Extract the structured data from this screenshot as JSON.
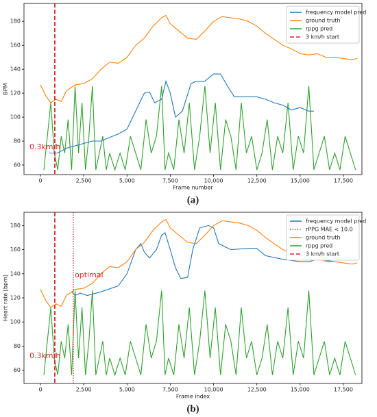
{
  "chart_data": [
    {
      "type": "line",
      "caption": "(a)",
      "y_label": "BPM",
      "x_label": "Frame number",
      "xlim": [
        -950,
        18570
      ],
      "ylim": [
        52,
        195
      ],
      "xticks": [
        0,
        {
          "value": 2500,
          "label": "2,500"
        },
        {
          "value": 5000,
          "label": "5,000"
        },
        {
          "value": 7500,
          "label": "7,500"
        },
        {
          "value": 10000,
          "label": "10,000"
        },
        {
          "value": 12500,
          "label": "12,500"
        },
        {
          "value": 15000,
          "label": "15,000"
        },
        {
          "value": 17500,
          "label": "17,500"
        }
      ],
      "yticks": [
        60,
        80,
        100,
        120,
        140,
        160,
        180
      ],
      "annotations": [
        "0.3km/h"
      ],
      "series": [
        {
          "name": "frequency model pred",
          "color": "#1f77b4",
          "style": "solid",
          "x": [
            500,
            1000,
            1500,
            2000,
            2500,
            3000,
            3500,
            4000,
            4500,
            5000,
            5500,
            6000,
            6300,
            6600,
            7000,
            7250,
            7500,
            7800,
            8200,
            8700,
            9000,
            9500,
            10000,
            10400,
            10800,
            11200,
            12000,
            12500,
            13000,
            13500,
            14000,
            14500,
            15000,
            15500,
            15800
          ],
          "values": [
            70,
            70,
            74,
            76,
            78,
            80,
            80,
            83,
            86,
            90,
            105,
            120,
            121,
            112,
            115,
            130,
            120,
            100,
            105,
            128,
            130,
            130,
            136,
            136,
            126,
            117,
            117,
            117,
            115,
            112,
            110,
            106,
            108,
            105,
            105
          ]
        },
        {
          "name": "ground truth",
          "color": "#ff7f0e",
          "style": "solid",
          "x": [
            0,
            300,
            600,
            900,
            1200,
            1500,
            2000,
            2500,
            3000,
            3500,
            4000,
            4500,
            5000,
            5500,
            6000,
            6500,
            7000,
            7250,
            7500,
            8000,
            8500,
            9000,
            9500,
            10000,
            10500,
            11000,
            11500,
            12000,
            12500,
            13000,
            13500,
            14000,
            14500,
            15000,
            15500,
            16000,
            16500,
            17000,
            17500,
            18000,
            18300
          ],
          "values": [
            127,
            118,
            112,
            115,
            113,
            122,
            127,
            128,
            132,
            140,
            146,
            145,
            150,
            160,
            166,
            176,
            183,
            185,
            178,
            172,
            166,
            165,
            172,
            180,
            184,
            183,
            182,
            180,
            176,
            170,
            165,
            160,
            157,
            153,
            152,
            153,
            150,
            150,
            149,
            148,
            149
          ]
        },
        {
          "name": "rppg pred",
          "color": "#2ca02c",
          "style": "solid",
          "x": [
            200,
            400,
            600,
            800,
            1000,
            1200,
            1400,
            1600,
            1800,
            2000,
            2200,
            2400,
            2600,
            2800,
            3000,
            3200,
            3400,
            3600,
            3800,
            4000,
            4300,
            4600,
            4900,
            5200,
            5500,
            5800,
            6100,
            6400,
            6700,
            7000,
            7200,
            7400,
            7700,
            8000,
            8300,
            8600,
            8900,
            9200,
            9500,
            9800,
            10100,
            10400,
            10700,
            11000,
            11300,
            11600,
            11900,
            12200,
            12500,
            12800,
            13100,
            13400,
            13700,
            14000,
            14300,
            14600,
            14900,
            15200,
            15500,
            15800,
            16100,
            16400,
            16700,
            17000,
            17300,
            17600,
            17900,
            18200
          ],
          "values": [
            56,
            84,
            112,
            70,
            56,
            84,
            70,
            98,
            56,
            126,
            70,
            112,
            56,
            84,
            126,
            56,
            70,
            84,
            56,
            70,
            56,
            70,
            56,
            84,
            70,
            56,
            98,
            70,
            84,
            126,
            56,
            70,
            56,
            98,
            70,
            112,
            56,
            84,
            126,
            70,
            112,
            56,
            98,
            84,
            56,
            112,
            70,
            84,
            56,
            70,
            98,
            56,
            84,
            70,
            112,
            56,
            84,
            70,
            126,
            56,
            70,
            84,
            56,
            70,
            56,
            84,
            70,
            56
          ]
        },
        {
          "name": "3 km/h start",
          "color": "#d62728",
          "style": "dashed",
          "x": [
            830
          ]
        }
      ]
    },
    {
      "type": "line",
      "caption": "(b)",
      "y_label": "Heart rate [bpm]",
      "x_label": "Frame index",
      "xlim": [
        -950,
        18570
      ],
      "ylim": [
        49,
        191
      ],
      "xticks": [
        0,
        {
          "value": 2500,
          "label": "2,500"
        },
        {
          "value": 5000,
          "label": "5,000"
        },
        {
          "value": 7500,
          "label": "7,500"
        },
        {
          "value": 10000,
          "label": "10,000"
        },
        {
          "value": 12500,
          "label": "12,500"
        },
        {
          "value": 15000,
          "label": "15,000"
        },
        {
          "value": 17500,
          "label": "17,500"
        }
      ],
      "yticks": [
        60,
        80,
        100,
        120,
        140,
        160,
        180
      ],
      "annotations": [
        "0.3km/h",
        "optimal"
      ],
      "series": [
        {
          "name": "frequency model pred",
          "color": "#1f77b4",
          "style": "solid",
          "x": [
            1800,
            2000,
            2300,
            2700,
            3500,
            4500,
            5000,
            5500,
            5800,
            6000,
            6300,
            6700,
            7000,
            7200,
            7500,
            7800,
            8100,
            8500,
            8800,
            9200,
            9700,
            10000,
            10300,
            11000,
            12000,
            12500,
            13000,
            14000,
            15000,
            15500,
            16000,
            17000
          ],
          "values": [
            125,
            122,
            124,
            122,
            125,
            130,
            140,
            160,
            165,
            158,
            153,
            160,
            172,
            174,
            160,
            145,
            136,
            137,
            160,
            178,
            180,
            178,
            165,
            160,
            161,
            161,
            155,
            152,
            150,
            150,
            152,
            150
          ]
        },
        {
          "name": "rPPG MAE < 10.0",
          "color": "#d62728",
          "style": "dotted",
          "x": [
            1900
          ]
        },
        {
          "name": "ground truth",
          "color": "#ff7f0e",
          "style": "solid",
          "x": [
            0,
            300,
            600,
            900,
            1200,
            1500,
            2000,
            2500,
            3000,
            3500,
            4000,
            4500,
            5000,
            5500,
            6000,
            6500,
            7000,
            7250,
            7500,
            8000,
            8500,
            9000,
            9500,
            10000,
            10500,
            11000,
            11500,
            12000,
            12500,
            13000,
            13500,
            14000,
            14500,
            15000,
            15500,
            16000,
            16500,
            17000,
            17500,
            18000,
            18300
          ],
          "values": [
            127,
            118,
            112,
            115,
            113,
            122,
            127,
            128,
            132,
            140,
            146,
            145,
            150,
            160,
            166,
            176,
            183,
            185,
            178,
            172,
            166,
            165,
            172,
            180,
            184,
            183,
            182,
            180,
            176,
            170,
            165,
            160,
            157,
            153,
            152,
            153,
            150,
            150,
            149,
            148,
            149
          ]
        },
        {
          "name": "rppg pred",
          "color": "#2ca02c",
          "style": "solid",
          "x": [
            200,
            400,
            600,
            800,
            1000,
            1200,
            1400,
            1600,
            1800,
            2000,
            2200,
            2400,
            2600,
            2800,
            3000,
            3200,
            3400,
            3600,
            3800,
            4000,
            4300,
            4600,
            4900,
            5200,
            5500,
            5800,
            6100,
            6400,
            6700,
            7000,
            7200,
            7400,
            7700,
            8000,
            8300,
            8600,
            8900,
            9200,
            9500,
            9800,
            10100,
            10400,
            10700,
            11000,
            11300,
            11600,
            11900,
            12200,
            12500,
            12800,
            13100,
            13400,
            13700,
            14000,
            14300,
            14600,
            14900,
            15200,
            15500,
            15800,
            16100,
            16400,
            16700,
            17000,
            17300,
            17600,
            17900,
            18200
          ],
          "values": [
            56,
            84,
            112,
            70,
            56,
            84,
            70,
            98,
            56,
            126,
            70,
            112,
            56,
            84,
            126,
            56,
            70,
            84,
            56,
            70,
            56,
            70,
            56,
            84,
            70,
            56,
            98,
            70,
            84,
            126,
            56,
            70,
            56,
            98,
            70,
            112,
            56,
            84,
            126,
            70,
            112,
            56,
            98,
            84,
            56,
            112,
            70,
            84,
            56,
            70,
            98,
            56,
            84,
            70,
            112,
            56,
            84,
            70,
            126,
            56,
            70,
            84,
            56,
            70,
            56,
            84,
            70,
            56
          ]
        },
        {
          "name": "3 km/h start",
          "color": "#d62728",
          "style": "dashed",
          "x": [
            830
          ]
        }
      ]
    }
  ]
}
